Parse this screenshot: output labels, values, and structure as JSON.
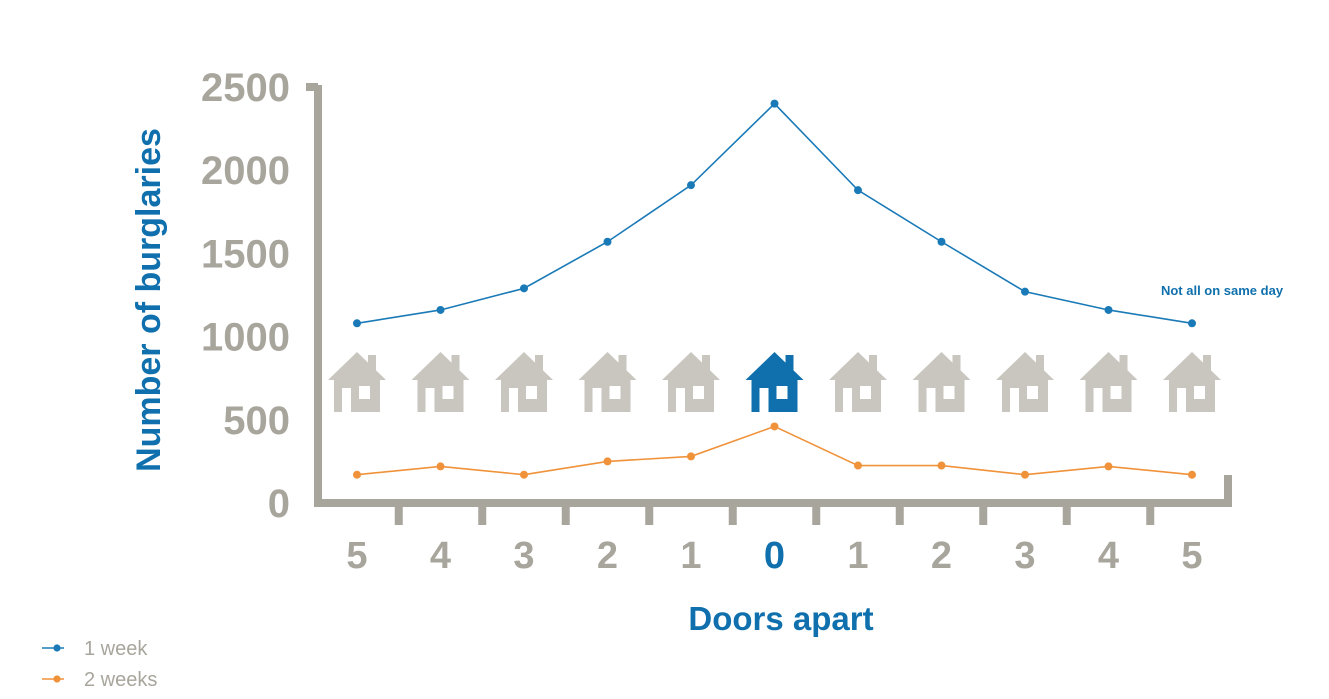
{
  "chart_data": {
    "type": "line",
    "title": "",
    "xlabel": "Doors apart",
    "ylabel": "Number of burglaries",
    "categories": [
      "5",
      "4",
      "3",
      "2",
      "1",
      "0",
      "1",
      "2",
      "3",
      "4",
      "5"
    ],
    "highlight_category_index": 5,
    "ylim": [
      0,
      2500
    ],
    "yticks": [
      "0",
      "500",
      "1000",
      "1500",
      "2000",
      "2500"
    ],
    "grid": false,
    "legend_position": "bottom-left",
    "annotation": "Not all on same day",
    "series": [
      {
        "name": "1 week",
        "color": "#1a7ab7",
        "values": [
          1080,
          1160,
          1290,
          1570,
          1910,
          2400,
          1880,
          1570,
          1270,
          1160,
          1080
        ]
      },
      {
        "name": "2 weeks",
        "color": "#f0923a",
        "values": [
          170,
          220,
          170,
          250,
          280,
          460,
          225,
          225,
          170,
          220,
          170
        ]
      }
    ],
    "colors": {
      "axis": "#a8a59c",
      "accent": "#0f70ad",
      "house": "#c8c6bf",
      "legend_text": "#a8a59c"
    },
    "icon": "house-icon"
  }
}
